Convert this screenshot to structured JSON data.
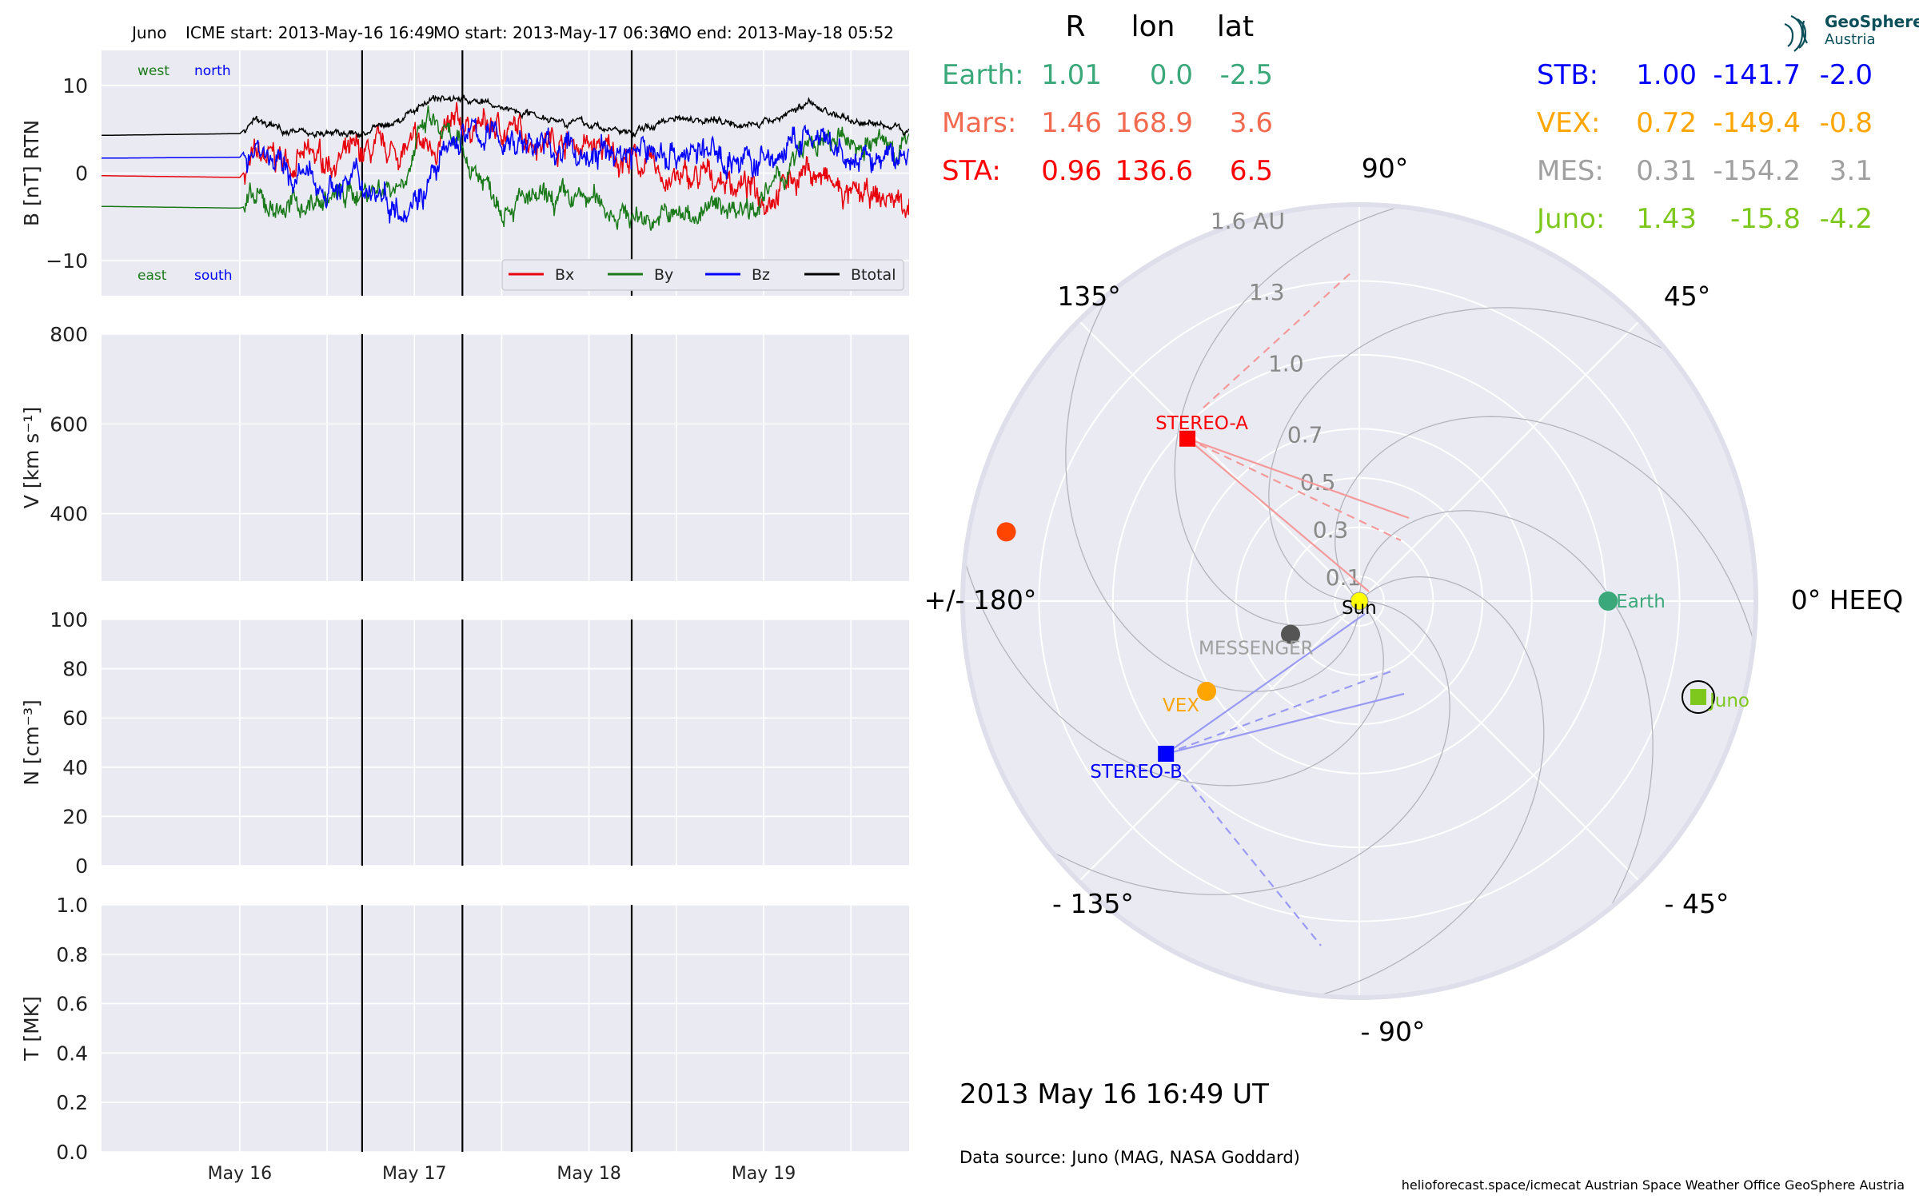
{
  "header": {
    "spacecraft": "Juno",
    "icme_start": "ICME start: 2013-May-16 16:49",
    "mo_start": "MO start: 2013-May-17 06:36",
    "mo_end": "MO end: 2013-May-18 05:52"
  },
  "colors": {
    "panel_bg": "#eaeaf2",
    "grid": "#ffffff",
    "bx": "#e8000b",
    "by": "#1a7a1a",
    "bz": "#0000ff",
    "btotal": "#000000",
    "earth": "#3aa87a",
    "mars": "#ff4500",
    "sta": "#ff0000",
    "stb": "#0000ff",
    "vex": "#ffa500",
    "mes": "#a0a0a0",
    "juno": "#7ec81e"
  },
  "chart_data": [
    {
      "type": "line",
      "panel": "mag",
      "ylabel": "B [nT] RTN",
      "ylim": [
        -14,
        14
      ],
      "yticks": [
        "10",
        "0",
        "−10"
      ],
      "grid": true,
      "legend_position": "lower-right",
      "xlim_days": [
        "2013-05-15 05:00",
        "2013-05-19 20:00"
      ],
      "xtick_labels": [
        "May 16",
        "May 17",
        "May 18",
        "May 19"
      ],
      "event_lines": [
        "2013-05-16 16:49",
        "2013-05-17 06:36",
        "2013-05-18 05:52"
      ],
      "annotations": {
        "west": "west",
        "north": "north",
        "east": "east",
        "south": "south"
      },
      "series": [
        {
          "name": "Bx",
          "color": "#e8000b",
          "x": [
            "2013-05-15 05:00",
            "2013-05-16 00:00",
            "2013-05-16 02:00",
            "2013-05-16 06:00",
            "2013-05-16 12:00",
            "2013-05-16 16:49",
            "2013-05-16 22:00",
            "2013-05-17 02:00",
            "2013-05-17 06:36",
            "2013-05-17 12:00",
            "2013-05-17 18:00",
            "2013-05-18 00:00",
            "2013-05-18 05:52",
            "2013-05-18 12:00",
            "2013-05-18 18:00",
            "2013-05-19 00:00",
            "2013-05-19 06:00",
            "2013-05-19 12:00",
            "2013-05-19 20:00"
          ],
          "y": [
            -0.3,
            -0.5,
            1.5,
            1.5,
            1.5,
            2.0,
            2.5,
            3.0,
            5.5,
            5.0,
            4.0,
            3.0,
            1.5,
            -1.0,
            -0.5,
            -2.5,
            0.5,
            -3.0,
            -3.0
          ]
        },
        {
          "name": "By",
          "color": "#1a7a1a",
          "x": [
            "2013-05-15 05:00",
            "2013-05-16 00:00",
            "2013-05-16 02:00",
            "2013-05-16 06:00",
            "2013-05-16 12:00",
            "2013-05-16 16:49",
            "2013-05-16 22:00",
            "2013-05-17 02:00",
            "2013-05-17 06:36",
            "2013-05-17 12:00",
            "2013-05-17 18:00",
            "2013-05-18 00:00",
            "2013-05-18 05:52",
            "2013-05-18 12:00",
            "2013-05-18 18:00",
            "2013-05-19 00:00",
            "2013-05-19 06:00",
            "2013-05-19 12:00",
            "2013-05-19 20:00"
          ],
          "y": [
            -3.8,
            -4.0,
            -3.5,
            -4.0,
            -3.0,
            -2.0,
            -1.0,
            6.0,
            2.0,
            -3.0,
            -3.5,
            -3.0,
            -5.0,
            -5.0,
            -4.0,
            -3.0,
            3.0,
            3.5,
            3.0
          ]
        },
        {
          "name": "Bz",
          "color": "#0000ff",
          "x": [
            "2013-05-15 05:00",
            "2013-05-16 00:00",
            "2013-05-16 02:00",
            "2013-05-16 06:00",
            "2013-05-16 12:00",
            "2013-05-16 16:49",
            "2013-05-16 22:00",
            "2013-05-17 02:00",
            "2013-05-17 06:36",
            "2013-05-17 12:00",
            "2013-05-17 18:00",
            "2013-05-18 00:00",
            "2013-05-18 05:52",
            "2013-05-18 12:00",
            "2013-05-18 18:00",
            "2013-05-19 00:00",
            "2013-05-19 06:00",
            "2013-05-19 12:00",
            "2013-05-19 20:00"
          ],
          "y": [
            1.7,
            1.8,
            4.0,
            0.0,
            -1.5,
            -1.0,
            -3.5,
            -1.0,
            4.5,
            4.0,
            3.0,
            2.0,
            2.5,
            2.5,
            2.0,
            1.0,
            4.0,
            1.0,
            2.0
          ]
        },
        {
          "name": "Btotal",
          "color": "#000000",
          "x": [
            "2013-05-15 05:00",
            "2013-05-16 00:00",
            "2013-05-16 02:00",
            "2013-05-16 06:00",
            "2013-05-16 12:00",
            "2013-05-16 16:49",
            "2013-05-16 22:00",
            "2013-05-17 02:00",
            "2013-05-17 06:36",
            "2013-05-17 12:00",
            "2013-05-17 18:00",
            "2013-05-18 00:00",
            "2013-05-18 05:52",
            "2013-05-18 12:00",
            "2013-05-18 18:00",
            "2013-05-19 00:00",
            "2013-05-19 06:00",
            "2013-05-19 12:00",
            "2013-05-19 20:00"
          ],
          "y": [
            4.3,
            4.5,
            6.0,
            5.0,
            4.5,
            4.5,
            6.0,
            8.5,
            8.5,
            7.5,
            6.5,
            5.5,
            4.5,
            6.5,
            6.0,
            5.5,
            8.0,
            6.0,
            5.0
          ]
        }
      ]
    },
    {
      "type": "line",
      "panel": "speed",
      "ylabel": "V [km s⁻¹]",
      "ylim": [
        250,
        800
      ],
      "yticks": [
        "800",
        "600",
        "400"
      ],
      "series": []
    },
    {
      "type": "line",
      "panel": "density",
      "ylabel": "N [cm⁻³]",
      "ylim": [
        0,
        100
      ],
      "yticks": [
        "100",
        "80",
        "60",
        "40",
        "20",
        "0"
      ],
      "series": []
    },
    {
      "type": "line",
      "panel": "temperature",
      "ylabel": "T [MK]",
      "ylim": [
        0,
        1
      ],
      "yticks": [
        "1.0",
        "0.8",
        "0.6",
        "0.4",
        "0.2",
        "0.0"
      ],
      "series": []
    },
    {
      "type": "scatter",
      "panel": "polar",
      "coordinate_system": "HEEQ",
      "r_max": 1.6,
      "radial_tick_labels": [
        "0.1",
        "0.3",
        "0.5",
        "0.7",
        "1.0",
        "1.3",
        "1.6 AU"
      ],
      "angle_labels": {
        "a0": "0° HEEQ",
        "a45": "45°",
        "a90": "90°",
        "a135": "135°",
        "a180": "+/- 180°",
        "am135": "- 135°",
        "am90": "- 90°",
        "am45": "- 45°"
      },
      "bodies": [
        {
          "name": "Sun",
          "r": 0.0,
          "lon": 0.0,
          "color": "#ffff00",
          "marker": "circle"
        },
        {
          "name": "Earth",
          "r": 1.01,
          "lon": 0.0,
          "color": "#3aa87a",
          "marker": "circle"
        },
        {
          "name": "",
          "r": 1.46,
          "lon": 168.9,
          "color": "#ff4500",
          "marker": "circle"
        },
        {
          "name": "STEREO-A",
          "r": 0.96,
          "lon": 136.6,
          "color": "#ff0000",
          "marker": "square"
        },
        {
          "name": "STEREO-B",
          "r": 1.0,
          "lon": -141.7,
          "color": "#0000ff",
          "marker": "square"
        },
        {
          "name": "VEX",
          "r": 0.72,
          "lon": -149.4,
          "color": "#ffa500",
          "marker": "circle"
        },
        {
          "name": "MESSENGER",
          "r": 0.31,
          "lon": -154.2,
          "color": "#555555",
          "marker": "circle"
        },
        {
          "name": "Juno",
          "r": 1.43,
          "lon": -15.8,
          "color": "#7ec81e",
          "marker": "square"
        }
      ]
    }
  ],
  "position_table": {
    "headers": {
      "r": "R",
      "lon": "lon",
      "lat": "lat"
    },
    "left": [
      {
        "name": "Earth:",
        "r": "1.01",
        "lon": "0.0",
        "lat": "-2.5",
        "color": "#3aa87a"
      },
      {
        "name": "Mars:",
        "r": "1.46",
        "lon": "168.9",
        "lat": "3.6",
        "color": "#f26a4f"
      },
      {
        "name": "STA:",
        "r": "0.96",
        "lon": "136.6",
        "lat": "6.5",
        "color": "#ff0000"
      }
    ],
    "right": [
      {
        "name": "STB:",
        "r": "1.00",
        "lon": "-141.7",
        "lat": "-2.0",
        "color": "#0000ff"
      },
      {
        "name": "VEX:",
        "r": "0.72",
        "lon": "-149.4",
        "lat": "-0.8",
        "color": "#ffa500"
      },
      {
        "name": "MES:",
        "r": "0.31",
        "lon": "-154.2",
        "lat": "3.1",
        "color": "#a0a0a0"
      },
      {
        "name": "Juno:",
        "r": "1.43",
        "lon": "-15.8",
        "lat": "-4.2",
        "color": "#7ec81e"
      }
    ]
  },
  "logo": {
    "line1": "GeoSphere",
    "line2": "Austria"
  },
  "footer": {
    "timestamp": "2013 May 16  16:49 UT",
    "data_source": "Data source: Juno (MAG, NASA Goddard)",
    "credits": "helioforecast.space/icmecat   Austrian Space Weather Office   GeoSphere Austria"
  }
}
